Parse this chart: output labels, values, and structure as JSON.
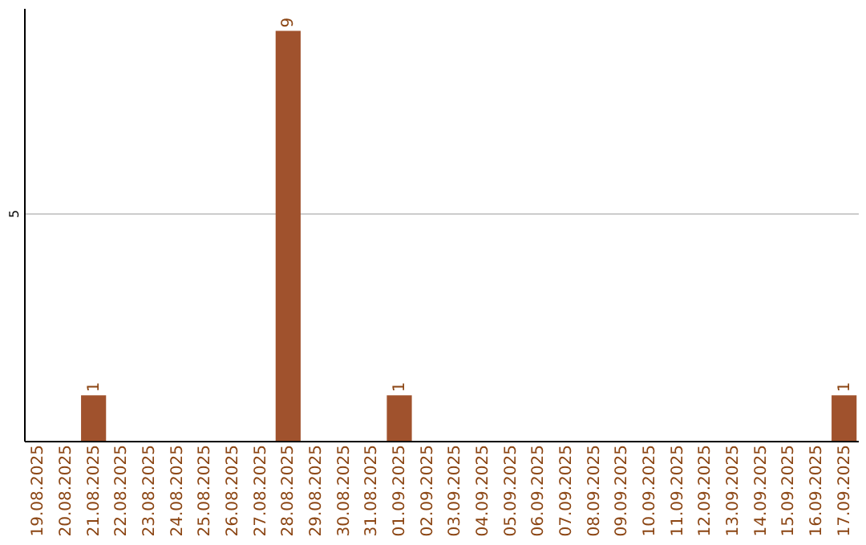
{
  "chart_data": {
    "type": "bar",
    "categories": [
      "19.08.2025",
      "20.08.2025",
      "21.08.2025",
      "22.08.2025",
      "23.08.2025",
      "24.08.2025",
      "25.08.2025",
      "26.08.2025",
      "27.08.2025",
      "28.08.2025",
      "29.08.2025",
      "30.08.2025",
      "31.08.2025",
      "01.09.2025",
      "02.09.2025",
      "03.09.2025",
      "04.09.2025",
      "05.09.2025",
      "06.09.2025",
      "07.09.2025",
      "08.09.2025",
      "09.09.2025",
      "10.09.2025",
      "11.09.2025",
      "12.09.2025",
      "13.09.2025",
      "14.09.2025",
      "15.09.2025",
      "16.09.2025",
      "17.09.2025"
    ],
    "values": [
      0,
      0,
      1,
      0,
      0,
      0,
      0,
      0,
      0,
      9,
      0,
      0,
      0,
      1,
      0,
      0,
      0,
      0,
      0,
      0,
      0,
      0,
      0,
      0,
      0,
      0,
      0,
      0,
      0,
      1
    ],
    "color": "#a0522d",
    "value_labels": [
      null,
      null,
      "1",
      null,
      null,
      null,
      null,
      null,
      null,
      "9",
      null,
      null,
      null,
      "1",
      null,
      null,
      null,
      null,
      null,
      null,
      null,
      null,
      null,
      null,
      null,
      null,
      null,
      null,
      null,
      "1"
    ],
    "ylim": [
      0,
      9.5
    ],
    "yticks": [
      5
    ],
    "grid": "y"
  }
}
